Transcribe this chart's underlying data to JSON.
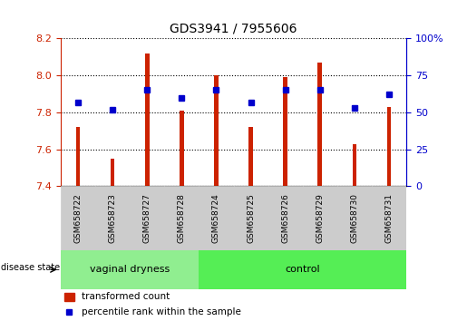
{
  "title": "GDS3941 / 7955606",
  "samples": [
    "GSM658722",
    "GSM658723",
    "GSM658727",
    "GSM658728",
    "GSM658724",
    "GSM658725",
    "GSM658726",
    "GSM658729",
    "GSM658730",
    "GSM658731"
  ],
  "bar_values": [
    7.72,
    7.55,
    8.12,
    7.81,
    8.0,
    7.72,
    7.99,
    8.07,
    7.63,
    7.83
  ],
  "dot_values": [
    57,
    52,
    65,
    60,
    65,
    57,
    65,
    65,
    53,
    62
  ],
  "ylim_left": [
    7.4,
    8.2
  ],
  "ylim_right": [
    0,
    100
  ],
  "yticks_left": [
    7.4,
    7.6,
    7.8,
    8.0,
    8.2
  ],
  "yticks_right": [
    0,
    25,
    50,
    75,
    100
  ],
  "bar_color": "#cc2200",
  "dot_color": "#0000cc",
  "bar_bottom": 7.4,
  "n_vaginal": 4,
  "n_control": 6,
  "group_labels": [
    "vaginal dryness",
    "control"
  ],
  "group_color_vaginal": "#90ee90",
  "group_color_control": "#55ee55",
  "disease_state_label": "disease state",
  "legend_bar_label": "transformed count",
  "legend_dot_label": "percentile rank within the sample",
  "left_tick_color": "#cc2200",
  "right_tick_color": "#0000cc",
  "sample_box_color": "#cccccc",
  "bar_width": 0.12
}
